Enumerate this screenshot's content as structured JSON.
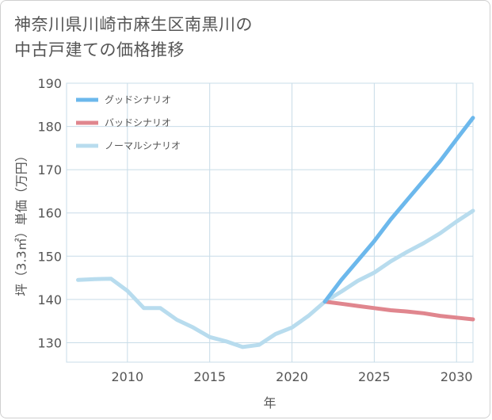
{
  "title_lines": [
    "神奈川県川崎市麻生区南黒川の",
    "中古戸建ての価格推移"
  ],
  "chart_data": {
    "type": "line",
    "title": "神奈川県川崎市麻生区南黒川の中古戸建ての価格推移",
    "xlabel": "年",
    "ylabel": "坪（3.3㎡）単価（万円）",
    "xlim": [
      2006.3,
      2031
    ],
    "ylim": [
      125.5,
      190
    ],
    "xticks": [
      2010,
      2015,
      2020,
      2025,
      2030
    ],
    "yticks": [
      130,
      140,
      150,
      160,
      170,
      180,
      190
    ],
    "grid": true,
    "legend_position": "top-left",
    "series": [
      {
        "name": "グッドシナリオ",
        "color": "#6cb8ec",
        "x": [
          2022,
          2023,
          2024,
          2025,
          2026,
          2027,
          2028,
          2029,
          2030,
          2031
        ],
        "y": [
          139.5,
          144.5,
          149,
          153.5,
          158.5,
          163,
          167.5,
          172,
          177,
          182
        ]
      },
      {
        "name": "バッドシナリオ",
        "color": "#e0868e",
        "x": [
          2022,
          2023,
          2024,
          2025,
          2026,
          2027,
          2028,
          2029,
          2030,
          2031
        ],
        "y": [
          139.5,
          139,
          138.5,
          138,
          137.5,
          137.2,
          136.8,
          136.2,
          135.8,
          135.4
        ]
      },
      {
        "name": "ノーマルシナリオ",
        "color": "#b8dcee",
        "x": [
          2007,
          2008,
          2009,
          2010,
          2011,
          2012,
          2013,
          2014,
          2015,
          2016,
          2017,
          2018,
          2019,
          2020,
          2021,
          2022,
          2023,
          2024,
          2025,
          2026,
          2027,
          2028,
          2029,
          2030,
          2031
        ],
        "y": [
          144.5,
          144.7,
          144.8,
          142,
          138,
          138,
          135.3,
          133.5,
          131.3,
          130.3,
          129,
          129.5,
          132,
          133.5,
          136.2,
          139.5,
          141.8,
          144.3,
          146.2,
          148.8,
          151,
          153,
          155.3,
          158,
          160.5
        ]
      }
    ]
  }
}
